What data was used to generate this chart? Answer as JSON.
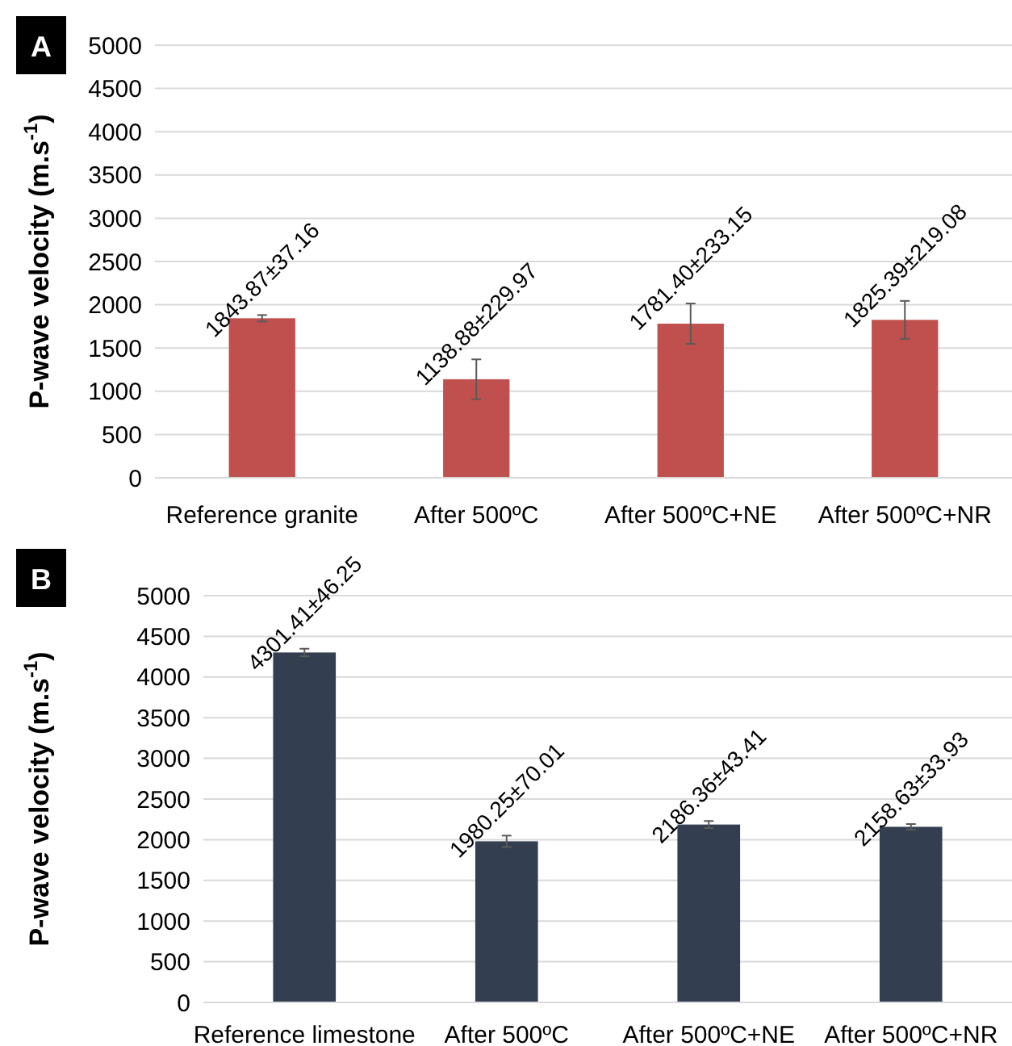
{
  "chart_data": [
    {
      "type": "bar",
      "title": "A",
      "ylabel": "P-wave velocity (m.s$^{-1}$)",
      "categories": [
        "Reference granite",
        "After 500ºC",
        "After 500ºC+NE",
        "After 500ºC+NR"
      ],
      "values": [
        1843.87,
        1138.88,
        1781.4,
        1825.39
      ],
      "errors": [
        37.16,
        229.97,
        233.15,
        219.08
      ],
      "value_labels": [
        "1843.87±37.16",
        "1138.88±229.97",
        "1781.40±233.15",
        "1825.39±219.08"
      ],
      "color": "#c0504d",
      "ylim": [
        0,
        5000
      ],
      "yticks": [
        0,
        500,
        1000,
        1500,
        2000,
        2500,
        3000,
        3500,
        4000,
        4500,
        5000
      ],
      "grid": "y"
    },
    {
      "type": "bar",
      "title": "B",
      "ylabel": "P-wave velocity (m.s$^{-1}$)",
      "categories": [
        "Reference limestone",
        "After 500ºC",
        "After 500ºC+NE",
        "After 500ºC+NR"
      ],
      "values": [
        4301.41,
        1980.25,
        2186.36,
        2158.63
      ],
      "errors": [
        46.25,
        70.01,
        43.41,
        33.93
      ],
      "value_labels": [
        "4301.41±46.25",
        "1980.25±70.01",
        "2186.36±43.41",
        "2158.63±33.93"
      ],
      "color": "#333f50",
      "ylim": [
        0,
        5000
      ],
      "yticks": [
        0,
        500,
        1000,
        1500,
        2000,
        2500,
        3000,
        3500,
        4000,
        4500,
        5000
      ],
      "grid": "y"
    }
  ]
}
